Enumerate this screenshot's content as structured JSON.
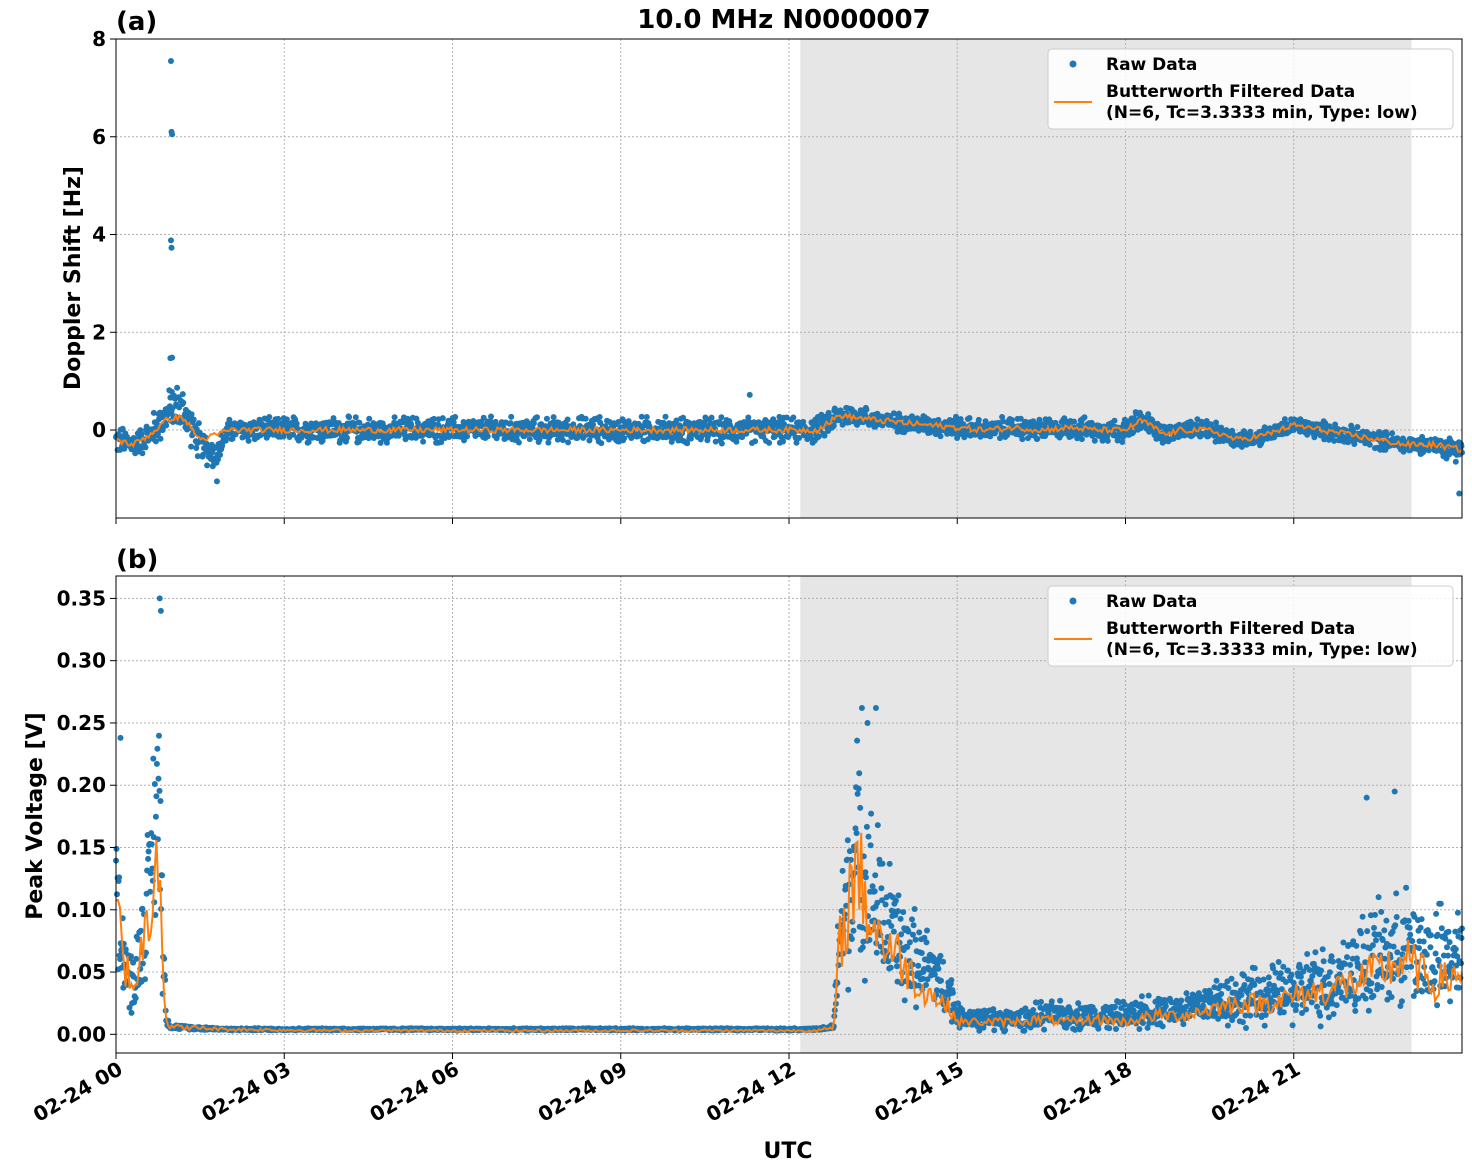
{
  "figure": {
    "title": "10.0 MHz N0000007",
    "xlabel": "UTC"
  },
  "colors": {
    "raw": "#1f77b4",
    "filtered": "#ff7f0e",
    "shade": "#e6e6e6",
    "grid": "#b0b0b0"
  },
  "legend": {
    "raw_label": "Raw Data",
    "filtered_label_line1": "Butterworth Filtered Data",
    "filtered_label_line2": "(N=6, Tc=3.3333 min, Type: low)"
  },
  "chart_data": [
    {
      "type": "scatter",
      "panel_label": "(a)",
      "ylabel": "Doppler Shift [Hz]",
      "xlabel": "UTC",
      "x_unit": "hours since 02-24 00:00 UTC",
      "xlim": [
        0,
        24
      ],
      "ylim": [
        -1.8,
        8
      ],
      "x_ticks": [
        0,
        3,
        6,
        9,
        12,
        15,
        18,
        21
      ],
      "x_tick_labels": [
        "02-24 00",
        "02-24 03",
        "02-24 06",
        "02-24 09",
        "02-24 12",
        "02-24 15",
        "02-24 18",
        "02-24 21"
      ],
      "y_ticks": [
        0,
        2,
        4,
        6,
        8
      ],
      "y_tick_labels": [
        "0",
        "2",
        "4",
        "6",
        "8"
      ],
      "grid": true,
      "legend_position": "top-right",
      "shaded_span": [
        12.2,
        23.1
      ],
      "series": [
        {
          "name": "Raw Data",
          "style": "points",
          "x": [
            0,
            0.3,
            0.6,
            0.9,
            1.0,
            1.2,
            1.5,
            1.8,
            2.0,
            3,
            4,
            5,
            6,
            7,
            8,
            9,
            10,
            11,
            11.5,
            12.0,
            12.5,
            12.9,
            13.2,
            13.6,
            14,
            14.5,
            15,
            15.5,
            16,
            16.5,
            17,
            17.5,
            18,
            18.3,
            18.7,
            19,
            19.5,
            20,
            20.5,
            21,
            21.5,
            22,
            22.5,
            23,
            23.5,
            24
          ],
          "y": [
            -0.2,
            -0.3,
            -0.1,
            0.3,
            0.5,
            0.4,
            -0.3,
            -0.5,
            0.0,
            0.0,
            0.0,
            0.0,
            0.0,
            0.0,
            0.0,
            0.0,
            0.0,
            0.0,
            0.0,
            0.0,
            0.0,
            0.3,
            0.3,
            0.2,
            0.15,
            0.1,
            0.05,
            0.0,
            0.05,
            0.0,
            0.05,
            0.0,
            0.0,
            0.2,
            -0.1,
            0.0,
            0.0,
            -0.2,
            -0.1,
            0.1,
            0.0,
            -0.1,
            -0.2,
            -0.3,
            -0.3,
            -0.4
          ],
          "spread": [
            0.3,
            0.35,
            0.35,
            0.45,
            0.5,
            0.5,
            0.4,
            0.3,
            0.25,
            0.28,
            0.28,
            0.28,
            0.28,
            0.28,
            0.28,
            0.28,
            0.28,
            0.28,
            0.28,
            0.28,
            0.28,
            0.28,
            0.22,
            0.22,
            0.2,
            0.22,
            0.25,
            0.22,
            0.25,
            0.25,
            0.25,
            0.25,
            0.25,
            0.25,
            0.22,
            0.22,
            0.22,
            0.22,
            0.2,
            0.2,
            0.2,
            0.2,
            0.2,
            0.2,
            0.2,
            0.3
          ],
          "outliers": [
            [
              0.98,
              7.55
            ],
            [
              0.99,
              6.1
            ],
            [
              1.0,
              6.05
            ],
            [
              0.98,
              3.88
            ],
            [
              0.99,
              3.73
            ],
            [
              1.0,
              1.48
            ],
            [
              0.97,
              1.47
            ],
            [
              11.3,
              0.72
            ],
            [
              1.8,
              -1.05
            ],
            [
              23.95,
              -1.3
            ]
          ]
        },
        {
          "name": "Butterworth Filtered Data (N=6, Tc=3.3333 min, Type: low)",
          "style": "line",
          "x": [
            0,
            0.3,
            0.6,
            0.9,
            1.0,
            1.2,
            1.5,
            1.8,
            2.0,
            3,
            4,
            5,
            6,
            7,
            8,
            9,
            10,
            11,
            11.5,
            12.0,
            12.5,
            12.9,
            13.2,
            13.6,
            14,
            14.5,
            15,
            15.5,
            16,
            16.5,
            17,
            17.5,
            18,
            18.3,
            18.7,
            19,
            19.5,
            20,
            20.5,
            21,
            21.5,
            22,
            22.5,
            23,
            23.5,
            24
          ],
          "y": [
            -0.2,
            -0.3,
            -0.1,
            0.2,
            0.25,
            0.25,
            -0.2,
            -0.1,
            0.0,
            0.0,
            0.0,
            0.0,
            0.0,
            0.0,
            0.0,
            0.0,
            0.0,
            0.0,
            0.0,
            0.0,
            0.0,
            0.3,
            0.25,
            0.2,
            0.15,
            0.1,
            0.05,
            0.0,
            0.05,
            0.0,
            0.05,
            0.0,
            0.0,
            0.2,
            -0.1,
            0.0,
            0.0,
            -0.2,
            -0.1,
            0.1,
            0.0,
            -0.1,
            -0.2,
            -0.3,
            -0.3,
            -0.4
          ]
        }
      ]
    },
    {
      "type": "scatter",
      "panel_label": "(b)",
      "ylabel": "Peak Voltage [V]",
      "xlabel": "UTC",
      "x_unit": "hours since 02-24 00:00 UTC",
      "xlim": [
        0,
        24
      ],
      "ylim": [
        -0.015,
        0.368
      ],
      "x_ticks": [
        0,
        3,
        6,
        9,
        12,
        15,
        18,
        21
      ],
      "x_tick_labels": [
        "02-24 00",
        "02-24 03",
        "02-24 06",
        "02-24 09",
        "02-24 12",
        "02-24 15",
        "02-24 18",
        "02-24 21"
      ],
      "y_ticks": [
        0.0,
        0.05,
        0.1,
        0.15,
        0.2,
        0.25,
        0.3,
        0.35
      ],
      "y_tick_labels": [
        "0.00",
        "0.05",
        "0.10",
        "0.15",
        "0.20",
        "0.25",
        "0.30",
        "0.35"
      ],
      "grid": true,
      "legend_position": "top-right",
      "shaded_span": [
        12.2,
        23.1
      ],
      "series": [
        {
          "name": "Raw Data",
          "style": "points",
          "x": [
            0,
            0.1,
            0.2,
            0.3,
            0.4,
            0.5,
            0.6,
            0.7,
            0.75,
            0.8,
            0.85,
            0.9,
            1.0,
            2,
            4,
            6,
            8,
            10,
            11,
            12,
            12.5,
            12.8,
            12.9,
            13.0,
            13.2,
            13.4,
            13.6,
            13.8,
            14.0,
            14.3,
            14.6,
            14.9,
            15.0,
            15.5,
            16,
            16.5,
            17,
            17.5,
            18,
            18.5,
            19,
            19.5,
            20,
            20.5,
            21,
            21.5,
            22,
            22.5,
            23,
            23.5,
            24
          ],
          "y": [
            0.12,
            0.08,
            0.05,
            0.04,
            0.06,
            0.09,
            0.12,
            0.18,
            0.2,
            0.15,
            0.06,
            0.01,
            0.006,
            0.004,
            0.004,
            0.004,
            0.004,
            0.004,
            0.004,
            0.004,
            0.004,
            0.006,
            0.08,
            0.1,
            0.15,
            0.12,
            0.1,
            0.08,
            0.07,
            0.06,
            0.05,
            0.03,
            0.015,
            0.012,
            0.012,
            0.015,
            0.015,
            0.015,
            0.015,
            0.02,
            0.02,
            0.025,
            0.03,
            0.03,
            0.035,
            0.04,
            0.05,
            0.06,
            0.07,
            0.06,
            0.06
          ],
          "spread": [
            0.06,
            0.05,
            0.03,
            0.03,
            0.04,
            0.05,
            0.06,
            0.1,
            0.12,
            0.1,
            0.04,
            0.005,
            0.002,
            0.001,
            0.001,
            0.001,
            0.001,
            0.001,
            0.001,
            0.001,
            0.001,
            0.002,
            0.06,
            0.08,
            0.1,
            0.08,
            0.07,
            0.06,
            0.05,
            0.04,
            0.03,
            0.02,
            0.01,
            0.01,
            0.01,
            0.012,
            0.012,
            0.012,
            0.012,
            0.015,
            0.015,
            0.02,
            0.025,
            0.025,
            0.03,
            0.035,
            0.04,
            0.05,
            0.05,
            0.05,
            0.04
          ],
          "outliers": [
            [
              0.78,
              0.35
            ],
            [
              0.8,
              0.34
            ],
            [
              13.3,
              0.262
            ],
            [
              13.55,
              0.262
            ],
            [
              13.4,
              0.25
            ],
            [
              0.08,
              0.238
            ],
            [
              22.8,
              0.195
            ],
            [
              22.3,
              0.19
            ]
          ]
        },
        {
          "name": "Butterworth Filtered Data (N=6, Tc=3.3333 min, Type: low)",
          "style": "line",
          "x": [
            0,
            0.1,
            0.2,
            0.3,
            0.4,
            0.5,
            0.6,
            0.7,
            0.75,
            0.8,
            0.85,
            0.9,
            1.0,
            2,
            4,
            6,
            8,
            10,
            11,
            12,
            12.5,
            12.8,
            12.9,
            13.0,
            13.2,
            13.4,
            13.6,
            13.8,
            14.0,
            14.3,
            14.6,
            14.9,
            15.0,
            15.5,
            16,
            16.5,
            17,
            17.5,
            18,
            18.5,
            19,
            19.5,
            20,
            20.5,
            21,
            21.5,
            22,
            22.5,
            23,
            23.5,
            24
          ],
          "y": [
            0.11,
            0.07,
            0.05,
            0.04,
            0.05,
            0.08,
            0.1,
            0.15,
            0.18,
            0.12,
            0.04,
            0.008,
            0.006,
            0.004,
            0.003,
            0.003,
            0.003,
            0.003,
            0.003,
            0.003,
            0.003,
            0.005,
            0.07,
            0.09,
            0.14,
            0.1,
            0.08,
            0.07,
            0.06,
            0.04,
            0.03,
            0.02,
            0.01,
            0.01,
            0.01,
            0.012,
            0.01,
            0.012,
            0.01,
            0.015,
            0.015,
            0.02,
            0.025,
            0.025,
            0.03,
            0.035,
            0.04,
            0.05,
            0.06,
            0.04,
            0.05
          ]
        }
      ]
    }
  ]
}
